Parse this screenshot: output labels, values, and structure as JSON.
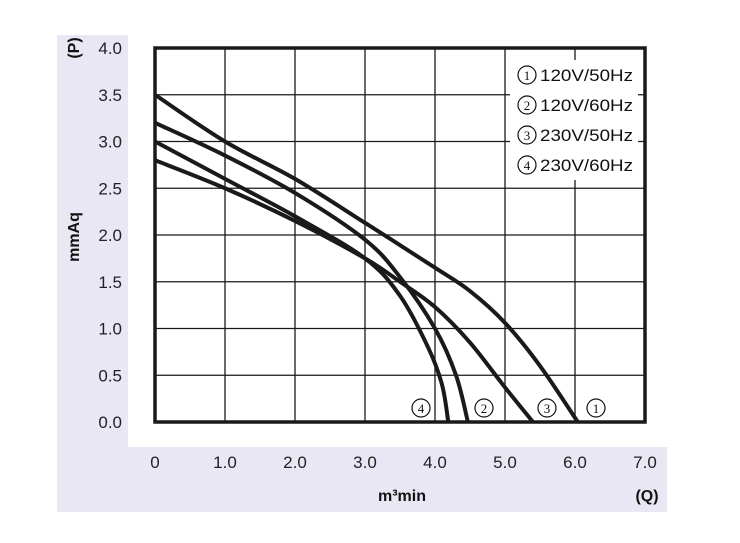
{
  "chart_data": {
    "type": "line",
    "title": "",
    "xlabel": "m³min",
    "xlabel_symbol": "(Q)",
    "ylabel": "mmAq",
    "ylabel_symbol": "(P)",
    "xlim": [
      0,
      7.0
    ],
    "ylim": [
      0,
      4.0
    ],
    "grid": true,
    "legend_placement": "top-right",
    "x_ticks": [
      "0",
      "1.0",
      "2.0",
      "3.0",
      "4.0",
      "5.0",
      "6.0",
      "7.0"
    ],
    "y_ticks": [
      "0.0",
      "0.5",
      "1.0",
      "1.5",
      "2.0",
      "2.5",
      "3.0",
      "3.5",
      "4.0"
    ],
    "series": [
      {
        "id": "1",
        "name": "120V/50Hz",
        "x": [
          0,
          1,
          2,
          3,
          4,
          4.5,
          5,
          5.5,
          6.04
        ],
        "y": [
          3.5,
          3.0,
          2.6,
          2.13,
          1.65,
          1.4,
          1.06,
          0.6,
          0
        ]
      },
      {
        "id": "2",
        "name": "120V/60Hz",
        "x": [
          0,
          1,
          2,
          3,
          3.5,
          4.0,
          4.3,
          4.47
        ],
        "y": [
          3.2,
          2.85,
          2.45,
          1.95,
          1.55,
          1.0,
          0.5,
          0
        ]
      },
      {
        "id": "3",
        "name": "230V/50Hz",
        "x": [
          0,
          1,
          2,
          3,
          3.5,
          4,
          4.5,
          5,
          5.4
        ],
        "y": [
          2.8,
          2.5,
          2.15,
          1.75,
          1.5,
          1.23,
          0.85,
          0.37,
          0
        ]
      },
      {
        "id": "4",
        "name": "230V/60Hz",
        "x": [
          0,
          1,
          2,
          3,
          3.5,
          3.9,
          4.1,
          4.19
        ],
        "y": [
          3.0,
          2.6,
          2.2,
          1.75,
          1.35,
          0.8,
          0.4,
          0
        ]
      }
    ],
    "curve_labels": [
      "4",
      "2",
      "3",
      "1"
    ]
  }
}
